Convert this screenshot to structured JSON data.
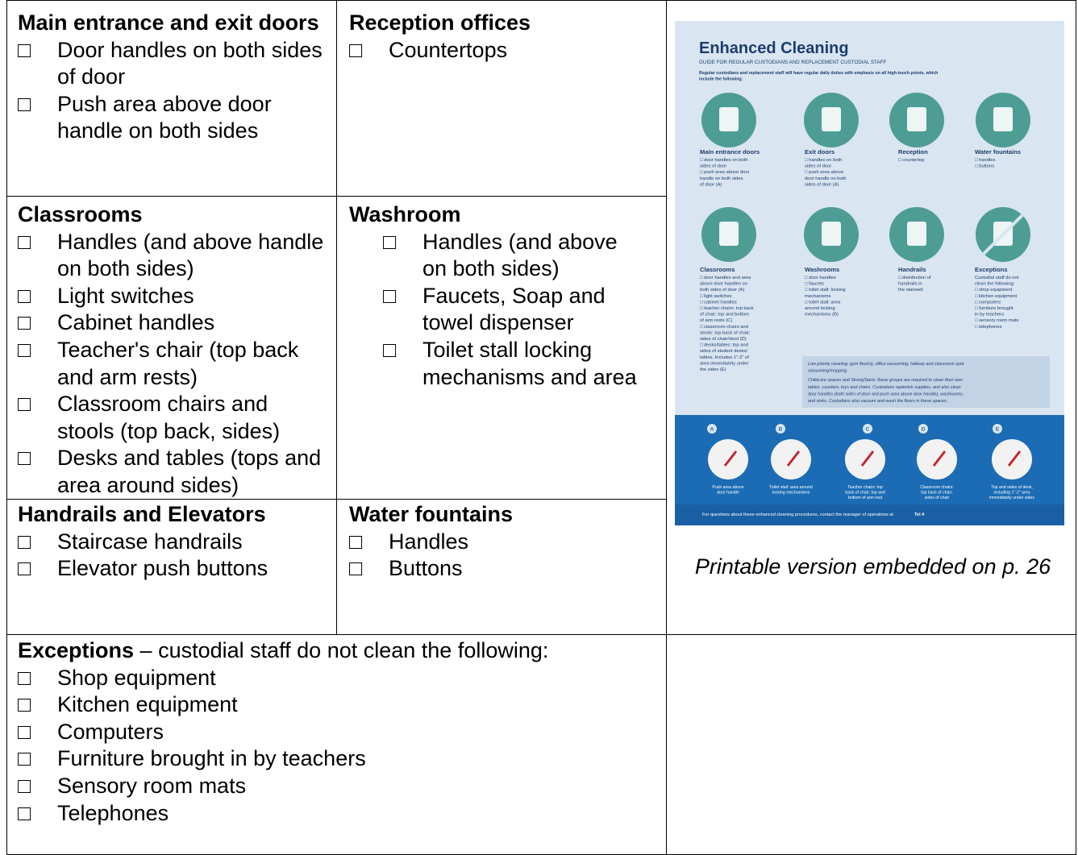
{
  "checkbox": "□",
  "table": {
    "cells": [
      {
        "heading": "Main entrance and exit doors",
        "items": [
          "Door handles on both sides of door",
          "Push area above door handle on both sides"
        ]
      },
      {
        "heading": "Reception offices",
        "items": [
          "Countertops"
        ]
      },
      {
        "heading": "Classrooms",
        "items": [
          "Handles (and above handle on both sides)",
          "Light switches",
          "Cabinet handles",
          "Teacher's chair (top back and arm rests)",
          "Classroom chairs and stools (top back, sides)",
          "Desks and tables (tops and area around sides)"
        ]
      },
      {
        "heading": "Washroom",
        "items": [
          "Handles (and above on both sides)",
          "Faucets, Soap and towel dispenser",
          "Toilet stall locking mechanisms and area"
        ]
      },
      {
        "heading": "Handrails and Elevators",
        "items": [
          "Staircase handrails",
          "Elevator push buttons"
        ]
      },
      {
        "heading": "Water fountains",
        "items": [
          "Handles",
          "Buttons"
        ]
      }
    ],
    "exceptions": {
      "heading": "Exceptions",
      "heading_rest": " – custodial staff do not clean the following:",
      "items": [
        "Shop equipment",
        "Kitchen equipment",
        "Computers",
        "Furniture brought in by teachers",
        "Sensory room mats",
        "Telephones"
      ]
    }
  },
  "figure": {
    "caption": "Printable version embedded on p. 26",
    "poster": {
      "title": "Enhanced Cleaning",
      "subtitle": "GUIDE FOR REGULAR CUSTODIANS AND REPLACEMENT CUSTODIAL STAFF",
      "intro": [
        "Regular custodians and replacement staff will have regular daily duties with emphasis on all high-touch points, which",
        "include the following:"
      ],
      "areas": [
        {
          "label": "Main entrance doors",
          "lines": [
            "□ door handles on both",
            "sides of door",
            "□ push area above door",
            "handle on both sides",
            "of door (A)"
          ]
        },
        {
          "label": "Exit doors",
          "lines": [
            "□ handles on both",
            "sides of  door",
            "□ push area above",
            "door handle on both",
            "sides of door (A)"
          ]
        },
        {
          "label": "Reception",
          "lines": [
            "□ countertop"
          ]
        },
        {
          "label": "Water fountains",
          "lines": [
            "□ handles",
            "□ buttons"
          ]
        },
        {
          "label": "Classrooms",
          "lines": [
            "□ door handles and area",
            "above door handles on",
            "both sides of door (A)",
            "□ light switches",
            "□ cabinet handles",
            "□ teacher chairs: top back",
            "of chair; top and bottom",
            "of arm rests (C)",
            "□ classroom chairs and",
            "stools: top back of chair;",
            "sides of chair/stool (D)",
            "□ desks/tables: top and",
            "sides of student desks/",
            "tables. Includes 1\"-2\" of",
            "area immediately under",
            "the sides (E)"
          ]
        },
        {
          "label": "Washrooms",
          "lines": [
            "□ door handles",
            "□ faucets",
            "□ toilet stall: locking",
            "mechanisms",
            "□ toilet stall: area",
            "around locking",
            "mechanisms (B)"
          ]
        },
        {
          "label": "Handrails",
          "lines": [
            "□ disinfection of",
            "handrails in",
            "the stairwell"
          ]
        },
        {
          "label": "Exceptions",
          "lines": [
            "Custodial staff do not",
            "clean the following:",
            "□ shop equipment",
            "□ kitchen equipment",
            "□ computers",
            "□ furniture brought",
            "in by teachers",
            "□ sensory room mats",
            "□ telephones"
          ]
        }
      ],
      "note": [
        "Low priority cleaning: gym floor(s), office vacuuming, hallway and classroom spot",
        "vacuuming/mopping.",
        "Childcare spaces and StrongStarts: these groups are required to clean their own",
        "tables, counters, toys and chairs. Custodians replenish supplies, and also clean",
        "door handles (both sides of door and push area above door handle), washrooms,",
        "and sinks. Custodians also vacuum and wash the floors in these spaces."
      ],
      "details": [
        {
          "letter": "A",
          "lines": [
            "Push area above",
            "door handle"
          ]
        },
        {
          "letter": "B",
          "lines": [
            "Toilet stall: area around",
            "locking mechanisms"
          ]
        },
        {
          "letter": "C",
          "lines": [
            "Teacher chairs: top",
            "back of chair; top and",
            "bottom of arm rest"
          ]
        },
        {
          "letter": "D",
          "lines": [
            "Classroom chairs:",
            "top back of chair;",
            "sides of chair"
          ]
        },
        {
          "letter": "E",
          "lines": [
            "Top and sides of desk,",
            "including 1\"-2\" area",
            "immediately under sides"
          ]
        }
      ],
      "footer": "For questions about these enhanced cleaning procedures, contact the manager of operations at",
      "footer_tel": "Tel #"
    }
  }
}
